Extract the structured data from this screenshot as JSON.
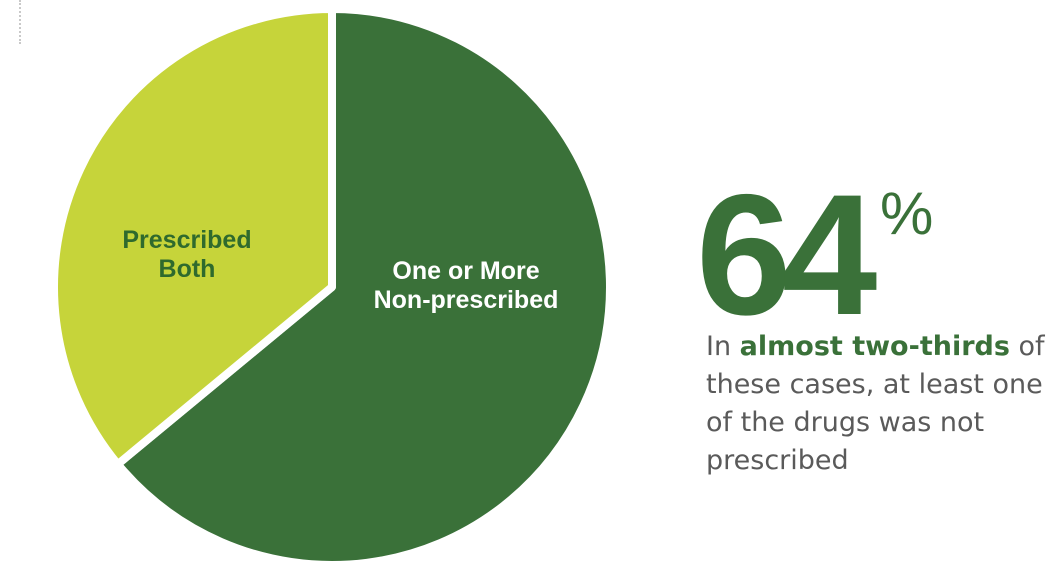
{
  "chart_data": {
    "type": "pie",
    "slices": [
      {
        "label": "One or More\nNon-prescribed",
        "value": 64,
        "color": "#3a7139",
        "label_color": "#ffffff"
      },
      {
        "label": "Prescribed\nBoth",
        "value": 36,
        "color": "#c6d43a",
        "label_color": "#2f6a2d"
      }
    ],
    "start_angle_deg": 0,
    "direction": "clockwise",
    "separator_color": "#ffffff"
  },
  "stat": {
    "number": "64",
    "unit": "%",
    "caption_lead": "In ",
    "caption_emphasis": "almost two-thirds",
    "caption_rest": " of these cases, at least one of the drugs was not prescribed"
  },
  "colors": {
    "dark_green": "#3a7139",
    "lime": "#c6d43a",
    "text_green": "#2f6a2d",
    "caption_gray": "#5a5a5a"
  }
}
